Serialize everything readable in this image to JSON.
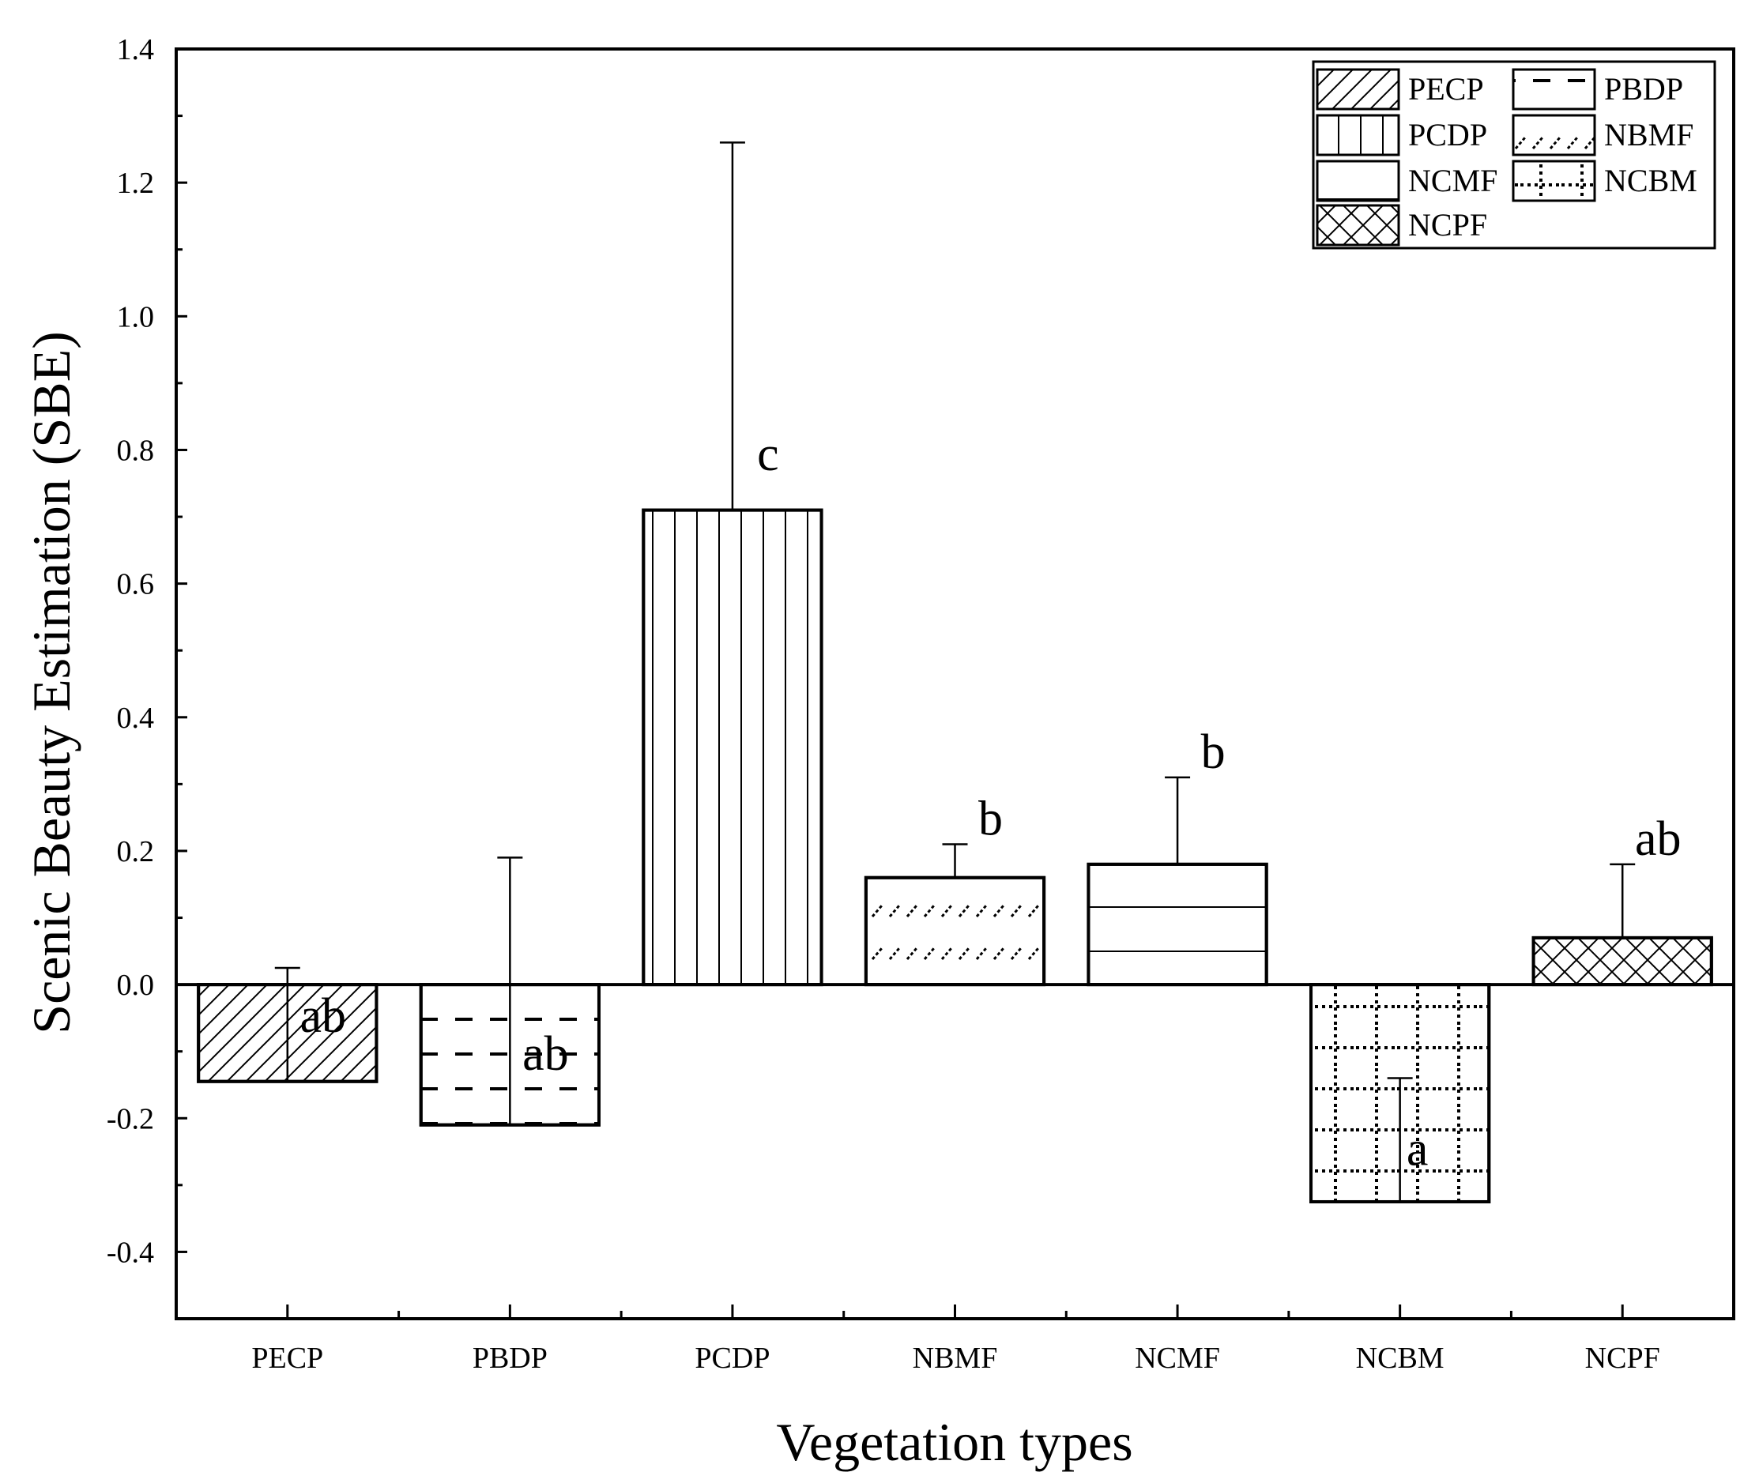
{
  "chart_data": {
    "type": "bar",
    "title": "",
    "xlabel": "Vegetation types",
    "ylabel": "Scenic Beauty Estimation (SBE)",
    "ylim": [
      -0.5,
      1.4
    ],
    "yticks": [
      -0.4,
      -0.2,
      0.0,
      0.2,
      0.4,
      0.6,
      0.8,
      1.0,
      1.2,
      1.4
    ],
    "ytick_labels": [
      "-0.4",
      "-0.2",
      "0.0",
      "0.2",
      "0.4",
      "0.6",
      "0.8",
      "1.0",
      "1.2",
      "1.4"
    ],
    "grid": false,
    "legend_position": "top-right",
    "categories": [
      "PECP",
      "PBDP",
      "PCDP",
      "NBMF",
      "NCMF",
      "NCBM",
      "NCPF"
    ],
    "values": [
      -0.145,
      -0.21,
      0.71,
      0.16,
      0.18,
      -0.325,
      0.07
    ],
    "error_bar_ends": [
      0.025,
      0.19,
      1.26,
      0.21,
      0.31,
      -0.14,
      0.18
    ],
    "significance_letters": [
      "ab",
      "ab",
      "c",
      "b",
      "b",
      "a",
      "ab"
    ],
    "patterns": [
      "diagonal",
      "dashes",
      "vertical",
      "short-diagonal-dash",
      "horizontal",
      "dotted-grid",
      "crosshatch"
    ],
    "legend": [
      {
        "label": "PECP",
        "pattern": "diagonal"
      },
      {
        "label": "PBDP",
        "pattern": "dashes"
      },
      {
        "label": "PCDP",
        "pattern": "vertical"
      },
      {
        "label": "NBMF",
        "pattern": "short-diagonal-dash"
      },
      {
        "label": "NCMF",
        "pattern": "horizontal"
      },
      {
        "label": "NCBM",
        "pattern": "dotted-grid"
      },
      {
        "label": "NCPF",
        "pattern": "crosshatch"
      }
    ],
    "colors": {
      "bar_fill": "#ffffff",
      "stroke": "#000000"
    }
  }
}
